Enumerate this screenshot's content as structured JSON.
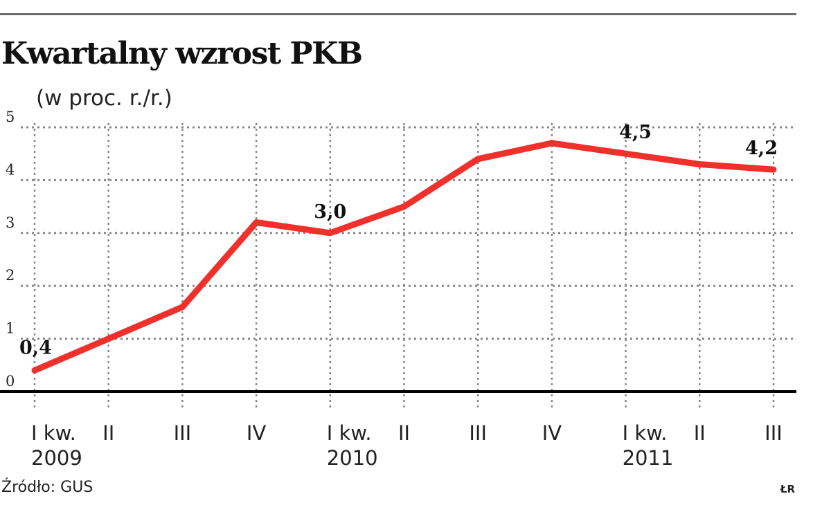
{
  "title": "Kwartalny wzrost PKB",
  "subtitle": "(w proc. r./r.)",
  "source": "Źródło: GUS",
  "credit": "ŁR",
  "colors": {
    "line": "#f0302a",
    "grid": "#888888",
    "axis": "#000000"
  },
  "chart_data": {
    "type": "line",
    "title": "Kwartalny wzrost PKB",
    "ylabel": "(w proc. r./r.)",
    "ylim": [
      0,
      5
    ],
    "yticks": [
      "0",
      "1",
      "2",
      "3",
      "4",
      "5"
    ],
    "grid": true,
    "categories": [
      "I kw.",
      "II",
      "III",
      "IV",
      "I kw.",
      "II",
      "III",
      "IV",
      "I kw.",
      "II",
      "III"
    ],
    "years": [
      {
        "label": "2009",
        "index": 0
      },
      {
        "label": "2010",
        "index": 4
      },
      {
        "label": "2011",
        "index": 8
      }
    ],
    "values": [
      0.4,
      1.0,
      1.6,
      3.2,
      3.0,
      3.5,
      4.4,
      4.7,
      4.5,
      4.3,
      4.2
    ],
    "data_labels": [
      {
        "index": 0,
        "text": "0,4"
      },
      {
        "index": 4,
        "text": "3,0"
      },
      {
        "index": 8,
        "text": "4,5"
      },
      {
        "index": 10,
        "text": "4,2"
      }
    ]
  }
}
